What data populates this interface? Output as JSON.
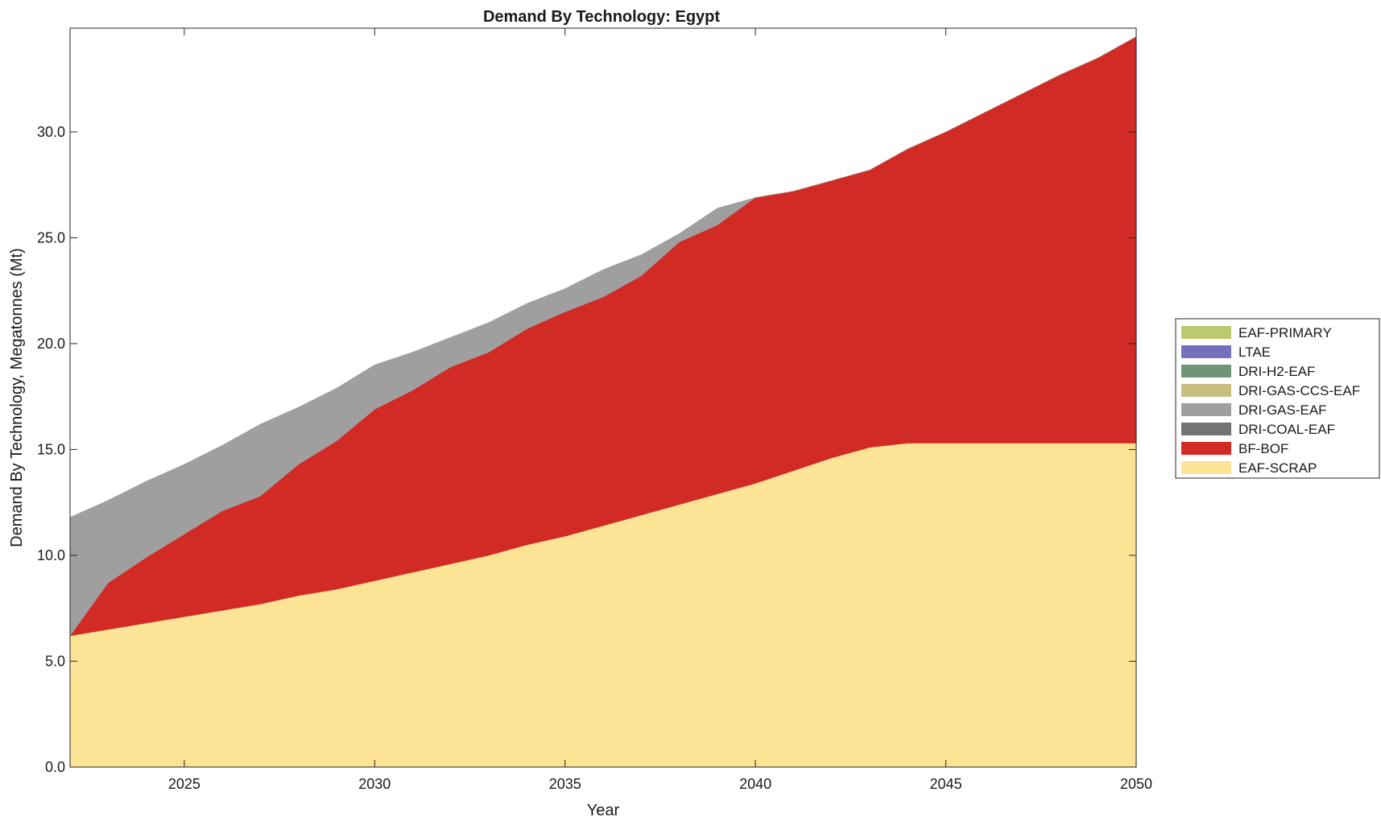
{
  "chart_data": {
    "type": "area",
    "stacked": true,
    "title": "Demand By Technology: Egypt",
    "xlabel": "Year",
    "ylabel": "Demand By Technology, Megatonnes (Mt)",
    "xlim": [
      2022,
      2050
    ],
    "ylim": [
      0,
      34.9
    ],
    "x_ticks": [
      2025,
      2030,
      2035,
      2040,
      2045,
      2050
    ],
    "y_ticks": [
      0.0,
      5.0,
      10.0,
      15.0,
      20.0,
      25.0,
      30.0
    ],
    "legend_position": "right",
    "x": [
      2022,
      2023,
      2024,
      2025,
      2026,
      2027,
      2028,
      2029,
      2030,
      2031,
      2032,
      2033,
      2034,
      2035,
      2036,
      2037,
      2038,
      2039,
      2040,
      2041,
      2042,
      2043,
      2044,
      2045,
      2046,
      2047,
      2048,
      2049,
      2050
    ],
    "series": [
      {
        "name": "EAF-SCRAP",
        "color": "#FDE395",
        "values": [
          6.2,
          6.5,
          6.8,
          7.1,
          7.4,
          7.7,
          8.1,
          8.4,
          8.8,
          9.2,
          9.6,
          10.0,
          10.5,
          10.9,
          11.4,
          11.9,
          12.4,
          12.9,
          13.4,
          14.0,
          14.6,
          15.1,
          15.3,
          15.3,
          15.3,
          15.3,
          15.3,
          15.3,
          15.3
        ]
      },
      {
        "name": "BF-BOF",
        "color": "#D22A24",
        "values": [
          0.0,
          2.2,
          3.1,
          3.9,
          4.7,
          5.1,
          6.2,
          7.0,
          8.1,
          8.6,
          9.3,
          9.6,
          10.2,
          10.6,
          10.8,
          11.3,
          12.4,
          12.7,
          13.5,
          13.2,
          13.1,
          13.1,
          13.9,
          14.7,
          15.6,
          16.5,
          17.4,
          18.2,
          19.2
        ]
      },
      {
        "name": "DRI-COAL-EAF",
        "color": "#737373",
        "values": [
          0,
          0,
          0,
          0,
          0,
          0,
          0,
          0,
          0,
          0,
          0,
          0,
          0,
          0,
          0,
          0,
          0,
          0,
          0,
          0,
          0,
          0,
          0,
          0,
          0,
          0,
          0,
          0,
          0
        ]
      },
      {
        "name": "DRI-GAS-EAF",
        "color": "#9F9F9F",
        "values": [
          5.6,
          3.9,
          3.6,
          3.3,
          3.1,
          3.4,
          2.7,
          2.5,
          2.1,
          1.8,
          1.4,
          1.4,
          1.2,
          1.1,
          1.3,
          1.0,
          0.4,
          0.8,
          0.0,
          0,
          0,
          0,
          0,
          0,
          0,
          0,
          0,
          0,
          0
        ]
      },
      {
        "name": "DRI-GAS-CCS-EAF",
        "color": "#C6BD80",
        "values": [
          0,
          0,
          0,
          0,
          0,
          0,
          0,
          0,
          0,
          0,
          0,
          0,
          0,
          0,
          0,
          0,
          0,
          0,
          0,
          0,
          0,
          0,
          0,
          0,
          0,
          0,
          0,
          0,
          0
        ]
      },
      {
        "name": "DRI-H2-EAF",
        "color": "#6E9578",
        "values": [
          0,
          0,
          0,
          0,
          0,
          0,
          0,
          0,
          0,
          0,
          0,
          0,
          0,
          0,
          0,
          0,
          0,
          0,
          0,
          0,
          0,
          0,
          0,
          0,
          0,
          0,
          0,
          0,
          0
        ]
      },
      {
        "name": "LTAE",
        "color": "#7570BE",
        "values": [
          0,
          0,
          0,
          0,
          0,
          0,
          0,
          0,
          0,
          0,
          0,
          0,
          0,
          0,
          0,
          0,
          0,
          0,
          0,
          0,
          0,
          0,
          0,
          0,
          0,
          0,
          0,
          0,
          0
        ]
      },
      {
        "name": "EAF-PRIMARY",
        "color": "#BDC96D",
        "values": [
          0,
          0,
          0,
          0,
          0,
          0,
          0,
          0,
          0,
          0,
          0,
          0,
          0,
          0,
          0,
          0,
          0,
          0,
          0,
          0,
          0,
          0,
          0,
          0,
          0,
          0,
          0,
          0,
          0
        ]
      }
    ],
    "legend_order": [
      "EAF-PRIMARY",
      "LTAE",
      "DRI-H2-EAF",
      "DRI-GAS-CCS-EAF",
      "DRI-GAS-EAF",
      "DRI-COAL-EAF",
      "BF-BOF",
      "EAF-SCRAP"
    ]
  }
}
